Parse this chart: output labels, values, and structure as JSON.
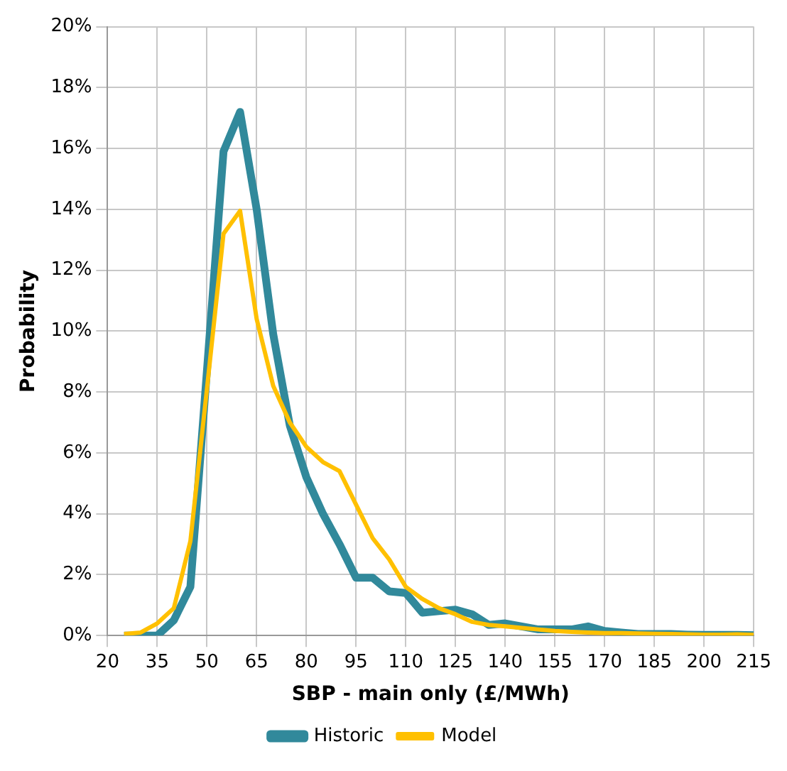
{
  "chart_data": {
    "type": "line",
    "xlabel": "SBP - main only (£/MWh)",
    "ylabel": "Probability",
    "x": [
      25,
      30,
      35,
      40,
      45,
      50,
      55,
      60,
      65,
      70,
      75,
      80,
      85,
      90,
      95,
      100,
      105,
      110,
      115,
      120,
      125,
      130,
      135,
      140,
      145,
      150,
      155,
      160,
      165,
      170,
      175,
      180,
      185,
      190,
      195,
      200,
      205,
      210,
      215
    ],
    "series": [
      {
        "name": "Historic",
        "color": "#31899b",
        "values": [
          0,
          0,
          0,
          0.5,
          1.6,
          8.7,
          15.9,
          17.2,
          14.0,
          9.9,
          6.9,
          5.2,
          4.0,
          3.0,
          1.9,
          1.9,
          1.45,
          1.4,
          0.75,
          0.8,
          0.85,
          0.7,
          0.35,
          0.4,
          0.3,
          0.2,
          0.2,
          0.2,
          0.3,
          0.15,
          0.1,
          0.05,
          0.05,
          0.05,
          0.03,
          0.02,
          0.02,
          0.02,
          0.01
        ]
      },
      {
        "name": "Model",
        "color": "#ffc000",
        "values": [
          0.05,
          0.1,
          0.4,
          0.9,
          3.1,
          8.1,
          13.2,
          13.95,
          10.4,
          8.2,
          7.0,
          6.2,
          5.7,
          5.4,
          4.3,
          3.2,
          2.5,
          1.6,
          1.2,
          0.9,
          0.7,
          0.45,
          0.35,
          0.3,
          0.25,
          0.2,
          0.15,
          0.12,
          0.1,
          0.08,
          0.08,
          0.07,
          0.06,
          0.05,
          0.04,
          0.03,
          0.03,
          0.04,
          0.02
        ]
      }
    ],
    "xlim": [
      20,
      215
    ],
    "xticks": [
      20,
      35,
      50,
      65,
      80,
      95,
      110,
      125,
      140,
      155,
      170,
      185,
      200,
      215
    ],
    "ylim": [
      0,
      20
    ],
    "yticks": [
      {
        "value": 0,
        "label": "0%"
      },
      {
        "value": 2,
        "label": "2%"
      },
      {
        "value": 4,
        "label": "4%"
      },
      {
        "value": 6,
        "label": "6%"
      },
      {
        "value": 8,
        "label": "8%"
      },
      {
        "value": 10,
        "label": "10%"
      },
      {
        "value": 12,
        "label": "12%"
      },
      {
        "value": 14,
        "label": "14%"
      },
      {
        "value": 16,
        "label": "16%"
      },
      {
        "value": 18,
        "label": "18%"
      },
      {
        "value": 20,
        "label": "20%"
      }
    ],
    "grid": true,
    "legend": "bottom",
    "marker": "none",
    "line_style": "solid"
  }
}
